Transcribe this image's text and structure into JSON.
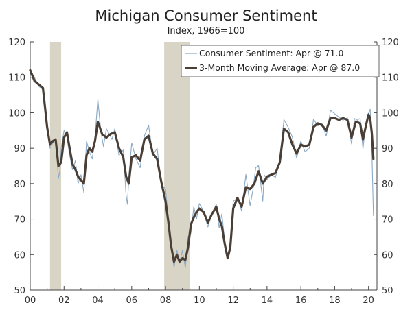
{
  "chart_data": {
    "type": "line",
    "title": "Michigan Consumer Sentiment",
    "subtitle": "Index, 1966=100",
    "xlabel": "",
    "ylabel": "",
    "xlim": [
      2000.0,
      2020.5
    ],
    "ylim": [
      50,
      120
    ],
    "y_ticks": [
      50,
      60,
      70,
      80,
      90,
      100,
      110,
      120
    ],
    "y_tick_labels": [
      "50",
      "60",
      "70",
      "80",
      "90",
      "100",
      "110",
      "120"
    ],
    "x_ticks": [
      2000,
      2002,
      2004,
      2006,
      2008,
      2010,
      2012,
      2014,
      2016,
      2018,
      2020
    ],
    "x_tick_labels": [
      "00",
      "02",
      "04",
      "06",
      "08",
      "10",
      "12",
      "14",
      "16",
      "18",
      "20"
    ],
    "recessions": [
      {
        "start": 2001.17,
        "end": 2001.83
      },
      {
        "start": 2007.92,
        "end": 2009.42
      }
    ],
    "legend_position": "top-right",
    "colors": {
      "sentiment": "#8aa9c4",
      "moving_average": "#4a3f36",
      "recession": "#d8d4c6",
      "axis": "#444444"
    },
    "series": [
      {
        "name": "Consumer Sentiment: Apr @ 71.0",
        "style": "thin",
        "x": [
          2000.0,
          2000.25,
          2000.5,
          2000.75,
          2001.0,
          2001.17,
          2001.33,
          2001.5,
          2001.67,
          2001.75,
          2001.83,
          2002.0,
          2002.17,
          2002.33,
          2002.5,
          2002.67,
          2002.83,
          2003.0,
          2003.17,
          2003.33,
          2003.5,
          2003.67,
          2003.83,
          2004.0,
          2004.17,
          2004.33,
          2004.5,
          2004.67,
          2004.83,
          2005.0,
          2005.25,
          2005.5,
          2005.67,
          2005.75,
          2005.83,
          2006.0,
          2006.25,
          2006.5,
          2006.75,
          2007.0,
          2007.25,
          2007.5,
          2007.75,
          2008.0,
          2008.17,
          2008.33,
          2008.5,
          2008.67,
          2008.83,
          2009.0,
          2009.17,
          2009.33,
          2009.5,
          2009.67,
          2009.83,
          2010.0,
          2010.25,
          2010.5,
          2010.75,
          2011.0,
          2011.17,
          2011.33,
          2011.5,
          2011.67,
          2011.83,
          2012.0,
          2012.25,
          2012.5,
          2012.75,
          2013.0,
          2013.17,
          2013.33,
          2013.5,
          2013.75,
          2013.83,
          2014.0,
          2014.25,
          2014.5,
          2014.75,
          2015.0,
          2015.25,
          2015.5,
          2015.75,
          2016.0,
          2016.25,
          2016.5,
          2016.75,
          2017.0,
          2017.25,
          2017.5,
          2017.75,
          2018.0,
          2018.25,
          2018.5,
          2018.75,
          2019.0,
          2019.17,
          2019.33,
          2019.5,
          2019.67,
          2019.83,
          2020.0,
          2020.1,
          2020.2,
          2020.29
        ],
        "values": [
          112.0,
          110.0,
          107.5,
          106.5,
          95.0,
          90.0,
          91.5,
          92.5,
          81.5,
          83.5,
          90.0,
          95.0,
          93.0,
          88.0,
          84.0,
          86.5,
          80.0,
          82.5,
          77.5,
          92.0,
          89.0,
          87.0,
          93.0,
          103.8,
          95.0,
          90.5,
          95.5,
          94.0,
          92.5,
          95.5,
          88.0,
          89.5,
          76.5,
          74.2,
          82.0,
          91.5,
          87.0,
          84.5,
          93.5,
          96.5,
          88.0,
          90.0,
          80.0,
          78.4,
          69.5,
          62.6,
          56.4,
          61.2,
          57.6,
          61.2,
          56.3,
          65.1,
          66.0,
          73.5,
          70.1,
          74.4,
          72.2,
          67.8,
          71.6,
          74.2,
          67.5,
          71.5,
          63.7,
          59.4,
          63.7,
          75.0,
          76.0,
          72.3,
          82.6,
          73.8,
          78.3,
          84.5,
          85.1,
          75.1,
          82.5,
          81.2,
          82.5,
          81.8,
          86.9,
          98.1,
          95.9,
          93.1,
          87.2,
          92.0,
          89.0,
          90.0,
          98.2,
          96.3,
          97.0,
          93.4,
          100.7,
          99.7,
          98.8,
          97.9,
          98.6,
          91.2,
          98.4,
          97.9,
          98.4,
          89.8,
          96.8,
          99.8,
          101.0,
          89.1,
          71.0
        ]
      },
      {
        "name": "3-Month Moving Average: Apr @ 87.0",
        "style": "thick",
        "x": [
          2000.0,
          2000.25,
          2000.5,
          2000.75,
          2001.0,
          2001.17,
          2001.33,
          2001.5,
          2001.67,
          2001.83,
          2002.0,
          2002.17,
          2002.33,
          2002.5,
          2002.67,
          2002.83,
          2003.0,
          2003.17,
          2003.33,
          2003.5,
          2003.67,
          2003.83,
          2004.0,
          2004.25,
          2004.5,
          2004.75,
          2005.0,
          2005.25,
          2005.5,
          2005.67,
          2005.83,
          2006.0,
          2006.25,
          2006.5,
          2006.75,
          2007.0,
          2007.25,
          2007.5,
          2007.75,
          2008.0,
          2008.17,
          2008.33,
          2008.5,
          2008.67,
          2008.83,
          2009.0,
          2009.17,
          2009.33,
          2009.5,
          2009.67,
          2009.83,
          2010.0,
          2010.25,
          2010.5,
          2010.75,
          2011.0,
          2011.17,
          2011.33,
          2011.5,
          2011.67,
          2011.83,
          2012.0,
          2012.25,
          2012.5,
          2012.75,
          2013.0,
          2013.25,
          2013.5,
          2013.75,
          2014.0,
          2014.25,
          2014.5,
          2014.75,
          2015.0,
          2015.25,
          2015.5,
          2015.75,
          2016.0,
          2016.25,
          2016.5,
          2016.75,
          2017.0,
          2017.25,
          2017.5,
          2017.75,
          2018.0,
          2018.25,
          2018.5,
          2018.75,
          2019.0,
          2019.25,
          2019.5,
          2019.67,
          2019.83,
          2020.0,
          2020.1,
          2020.2,
          2020.29
        ],
        "values": [
          112.0,
          109.0,
          108.0,
          107.0,
          96.0,
          91.0,
          92.0,
          92.5,
          85.0,
          86.0,
          93.0,
          94.5,
          90.0,
          85.5,
          84.0,
          82.0,
          81.0,
          80.0,
          88.0,
          90.0,
          89.0,
          92.0,
          97.5,
          94.0,
          93.0,
          94.0,
          94.5,
          90.0,
          87.5,
          82.0,
          80.0,
          87.5,
          88.0,
          86.5,
          92.5,
          93.5,
          88.5,
          87.0,
          80.5,
          75.0,
          69.0,
          62.5,
          58.0,
          60.0,
          58.0,
          59.0,
          58.5,
          62.0,
          68.5,
          70.5,
          72.0,
          73.0,
          72.0,
          69.0,
          71.5,
          73.5,
          70.0,
          68.0,
          63.0,
          59.0,
          62.0,
          73.0,
          76.0,
          73.5,
          79.0,
          78.5,
          80.0,
          83.5,
          80.0,
          82.0,
          82.5,
          83.0,
          86.0,
          95.5,
          94.5,
          91.0,
          88.5,
          91.0,
          90.5,
          91.0,
          96.0,
          97.0,
          96.5,
          95.0,
          98.5,
          98.5,
          98.0,
          98.5,
          98.0,
          93.0,
          97.5,
          97.0,
          92.5,
          96.0,
          99.5,
          98.5,
          94.0,
          87.0
        ]
      }
    ]
  }
}
